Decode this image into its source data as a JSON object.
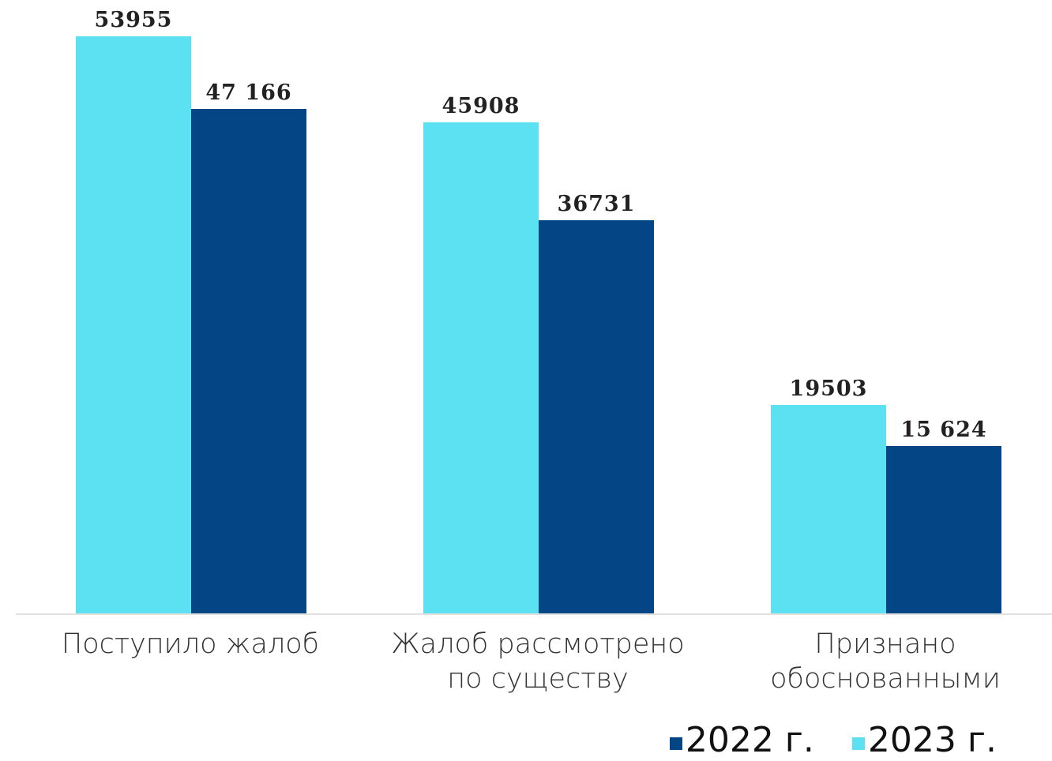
{
  "chart_data": {
    "type": "bar",
    "categories": [
      "Поступило жалоб",
      "Жалоб рассмотрено по существу",
      "Признано обоснованными"
    ],
    "series": [
      {
        "name": "2022 г.",
        "color": "#044585",
        "values": [
          47166,
          36731,
          15624
        ],
        "value_labels": [
          "47 166",
          "36731",
          "15 624"
        ]
      },
      {
        "name": "2023 г.",
        "color": "#5ce1f3",
        "values": [
          53955,
          45908,
          19503
        ],
        "value_labels": [
          "53955",
          "45908",
          "19503"
        ]
      }
    ]
  }
}
